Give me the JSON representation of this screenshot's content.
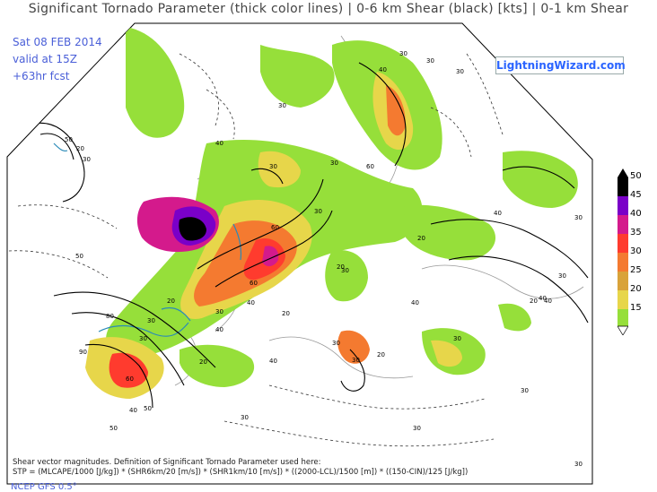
{
  "title": "Significant Tornado Parameter (thick color lines) | 0-6 km Shear (black) [kts] | 0-1 km Shear",
  "info": {
    "date": "Sat 08 FEB 2014",
    "valid": "valid at 15Z",
    "forecast": "+63hr fcst"
  },
  "logo_text": "LightningWizard.com",
  "legend": {
    "labels": [
      "50",
      "45",
      "40",
      "35",
      "30",
      "25",
      "20",
      "15"
    ],
    "colors": [
      "#000000",
      "#7a00c8",
      "#d41a8c",
      "#ff3b2e",
      "#f47a30",
      "#d9a33a",
      "#e7d64a",
      "#96df3a",
      "#ffffff"
    ]
  },
  "contour_labels": [
    "30",
    "30",
    "40",
    "30",
    "30",
    "50",
    "20",
    "30",
    "40",
    "30",
    "60",
    "50",
    "20",
    "30",
    "40",
    "20",
    "30",
    "40",
    "60",
    "40",
    "20",
    "30",
    "80",
    "90",
    "60",
    "50",
    "40",
    "30",
    "30",
    "60",
    "30",
    "20",
    "40",
    "30",
    "20",
    "40",
    "30",
    "20",
    "30",
    "30",
    "20",
    "30",
    "50",
    "30",
    "40",
    "30",
    "30",
    "30",
    "40"
  ],
  "footer": {
    "line1": "Shear vector magnitudes. Definition of Significant Tornado Parameter used here:",
    "line2": "STP = (MLCAPE/1000 [J/kg]) * (SHR6km/20 [m/s]) * (SHR1km/10 [m/s]) * ((2000-LCL)/1500 [m]) * ((150-CIN)/125 [J/kg])",
    "model": "NCEP GFS 0.5°"
  }
}
